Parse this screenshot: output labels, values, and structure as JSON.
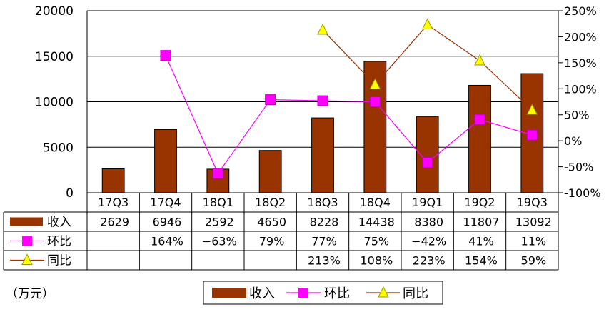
{
  "chart_data": {
    "type": "bar+line",
    "categories": [
      "17Q3",
      "17Q4",
      "18Q1",
      "18Q2",
      "18Q3",
      "18Q4",
      "19Q1",
      "19Q2",
      "19Q3"
    ],
    "left_axis": {
      "ticks": [
        "20000",
        "15000",
        "10000",
        "5000",
        "0"
      ],
      "ylim": [
        0,
        20000
      ]
    },
    "right_axis": {
      "ticks": [
        "250%",
        "200%",
        "150%",
        "100%",
        "50%",
        "0%",
        "-50%",
        "-100%"
      ],
      "ylim": [
        -100,
        250
      ]
    },
    "series": [
      {
        "name": "收入",
        "type": "bar",
        "axis": "left",
        "color": "#993300",
        "values": [
          2629,
          6946,
          2592,
          4650,
          8228,
          14438,
          8380,
          11807,
          13092
        ],
        "labels": [
          "2629",
          "6946",
          "2592",
          "4650",
          "8228",
          "14438",
          "8380",
          "11807",
          "13092"
        ]
      },
      {
        "name": "环比",
        "type": "line",
        "axis": "right",
        "color": "#ff00ff",
        "marker": "square",
        "values": [
          null,
          164,
          -63,
          79,
          77,
          75,
          -42,
          41,
          11
        ],
        "labels": [
          "",
          "164%",
          "−63%",
          "79%",
          "77%",
          "75%",
          "−42%",
          "41%",
          "11%"
        ]
      },
      {
        "name": "同比",
        "type": "line",
        "axis": "right",
        "color": "#993300",
        "marker_color": "#ffff00",
        "marker": "triangle",
        "values": [
          null,
          null,
          null,
          null,
          213,
          108,
          223,
          154,
          59
        ],
        "labels": [
          "",
          "",
          "",
          "",
          "213%",
          "108%",
          "223%",
          "154%",
          "59%"
        ]
      }
    ],
    "grid": true,
    "unit_note": "（万元）",
    "legend": [
      "收入",
      "环比",
      "同比"
    ],
    "legend_position": "bottom"
  }
}
